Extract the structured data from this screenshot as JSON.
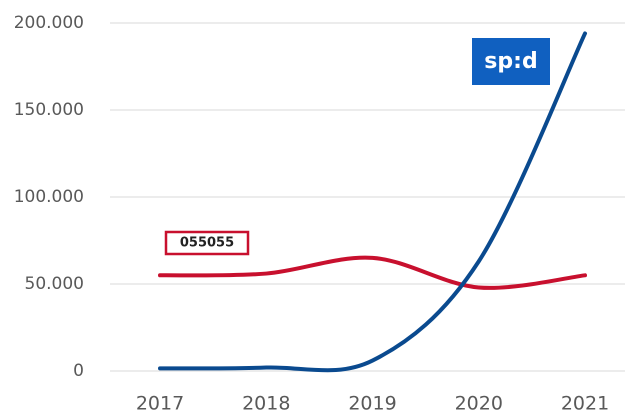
{
  "chart_data": {
    "type": "line",
    "categories": [
      "2017",
      "2018",
      "2019",
      "2020",
      "2021"
    ],
    "series": [
      {
        "color": "#c8102e",
        "values": [
          55000,
          56000,
          65000,
          48000,
          55000
        ]
      },
      {
        "color": "#0a4a8f",
        "values": [
          1500,
          2000,
          6000,
          63000,
          194000
        ]
      }
    ],
    "ylim": [
      0,
      200000
    ],
    "yticks": [
      {
        "value": 0,
        "label": "0"
      },
      {
        "value": 50000,
        "label": "50.000"
      },
      {
        "value": 100000,
        "label": "100.000"
      },
      {
        "value": 150000,
        "label": "150.000"
      },
      {
        "value": 200000,
        "label": "200.000"
      }
    ],
    "grid": true,
    "annotations": [
      {
        "text": "sp:d",
        "color": "#1060c0"
      },
      {
        "text": "055055",
        "color": "#c8102e"
      }
    ]
  }
}
